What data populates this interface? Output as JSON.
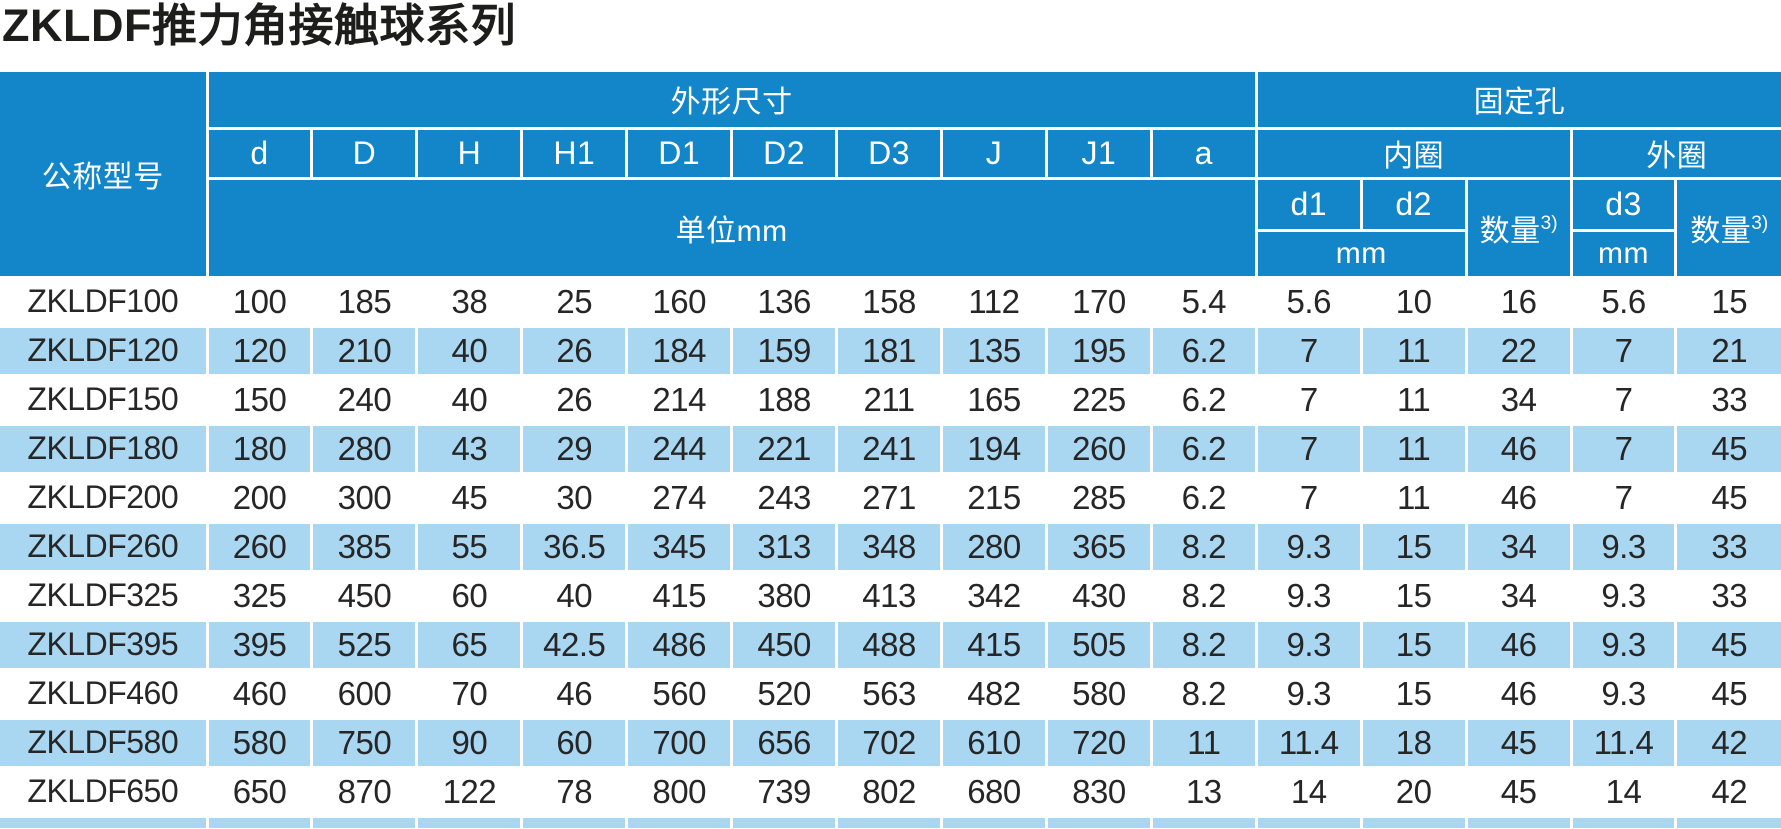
{
  "page": {
    "title": "ZKLDF推力角接触球系列"
  },
  "colors": {
    "header_blue": "#1386c9",
    "alt_row_blue": "#a9d6f1",
    "text_dark": "#262626",
    "header_text": "#ffffff"
  },
  "table": {
    "header": {
      "model_col": "公称型号",
      "dimensions_group": "外形尺寸",
      "fixing_holes_group": "固定孔",
      "dimension_cols": [
        "d",
        "D",
        "H",
        "H1",
        "D1",
        "D2",
        "D3",
        "J",
        "J1",
        "a"
      ],
      "unit_label": "单位mm",
      "inner_ring": "内圈",
      "outer_ring": "外圈",
      "d1": "d1",
      "d2": "d2",
      "d3": "d3",
      "qty_label": "数量",
      "qty_sup": "3)",
      "mm_label": "mm"
    },
    "rows": [
      {
        "model": "ZKLDF100",
        "values": [
          "100",
          "185",
          "38",
          "25",
          "160",
          "136",
          "158",
          "112",
          "170",
          "5.4",
          "5.6",
          "10",
          "16",
          "5.6",
          "15"
        ]
      },
      {
        "model": "ZKLDF120",
        "values": [
          "120",
          "210",
          "40",
          "26",
          "184",
          "159",
          "181",
          "135",
          "195",
          "6.2",
          "7",
          "11",
          "22",
          "7",
          "21"
        ]
      },
      {
        "model": "ZKLDF150",
        "values": [
          "150",
          "240",
          "40",
          "26",
          "214",
          "188",
          "211",
          "165",
          "225",
          "6.2",
          "7",
          "11",
          "34",
          "7",
          "33"
        ]
      },
      {
        "model": "ZKLDF180",
        "values": [
          "180",
          "280",
          "43",
          "29",
          "244",
          "221",
          "241",
          "194",
          "260",
          "6.2",
          "7",
          "11",
          "46",
          "7",
          "45"
        ]
      },
      {
        "model": "ZKLDF200",
        "values": [
          "200",
          "300",
          "45",
          "30",
          "274",
          "243",
          "271",
          "215",
          "285",
          "6.2",
          "7",
          "11",
          "46",
          "7",
          "45"
        ]
      },
      {
        "model": "ZKLDF260",
        "values": [
          "260",
          "385",
          "55",
          "36.5",
          "345",
          "313",
          "348",
          "280",
          "365",
          "8.2",
          "9.3",
          "15",
          "34",
          "9.3",
          "33"
        ]
      },
      {
        "model": "ZKLDF325",
        "values": [
          "325",
          "450",
          "60",
          "40",
          "415",
          "380",
          "413",
          "342",
          "430",
          "8.2",
          "9.3",
          "15",
          "34",
          "9.3",
          "33"
        ]
      },
      {
        "model": "ZKLDF395",
        "values": [
          "395",
          "525",
          "65",
          "42.5",
          "486",
          "450",
          "488",
          "415",
          "505",
          "8.2",
          "9.3",
          "15",
          "46",
          "9.3",
          "45"
        ]
      },
      {
        "model": "ZKLDF460",
        "values": [
          "460",
          "600",
          "70",
          "46",
          "560",
          "520",
          "563",
          "482",
          "580",
          "8.2",
          "9.3",
          "15",
          "46",
          "9.3",
          "45"
        ]
      },
      {
        "model": "ZKLDF580",
        "values": [
          "580",
          "750",
          "90",
          "60",
          "700",
          "656",
          "702",
          "610",
          "720",
          "11",
          "11.4",
          "18",
          "45",
          "11.4",
          "42"
        ]
      },
      {
        "model": "ZKLDF650",
        "values": [
          "650",
          "870",
          "122",
          "78",
          "800",
          "739",
          "802",
          "680",
          "830",
          "13",
          "14",
          "20",
          "45",
          "14",
          "42"
        ]
      }
    ]
  }
}
